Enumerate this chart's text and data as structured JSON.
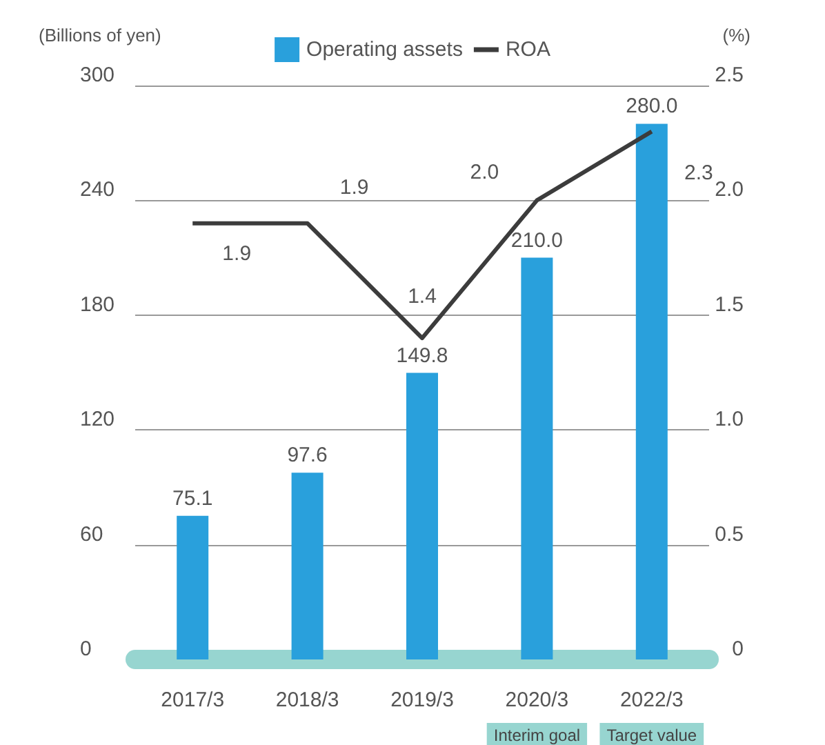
{
  "chart_data": {
    "type": "bar",
    "ylabel": "(Billions of yen)",
    "y2label": "(%)",
    "categories": [
      "2017/3",
      "2018/3",
      "2019/3",
      "2020/3",
      "2022/3"
    ],
    "series": [
      {
        "name": "Operating assets",
        "color": "#29a0dc",
        "values": [
          75.1,
          97.6,
          149.8,
          210.0,
          280.0
        ],
        "value_labels": [
          "75.1",
          "97.6",
          "149.8",
          "210.0",
          "280.0"
        ]
      },
      {
        "name": "ROA",
        "type": "line",
        "axis": "y2",
        "color": "#3c3c3c",
        "values": [
          1.9,
          1.9,
          1.4,
          2.0,
          2.3
        ],
        "value_labels": [
          "1.9",
          "1.9",
          "1.4",
          "2.0",
          "2.3"
        ]
      }
    ],
    "ylim": [
      0,
      300
    ],
    "yticks": [
      0,
      60,
      120,
      180,
      240,
      300
    ],
    "y2lim": [
      0,
      2.5
    ],
    "y2ticks": [
      0,
      0.5,
      {
        "value": 1,
        "label": "1.0"
      },
      1.5,
      {
        "value": 2,
        "label": "2.0"
      },
      2.5
    ],
    "annotations": [
      "Interim goal",
      "Target value"
    ],
    "grid": "y",
    "legend": "top",
    "marker": "none"
  }
}
